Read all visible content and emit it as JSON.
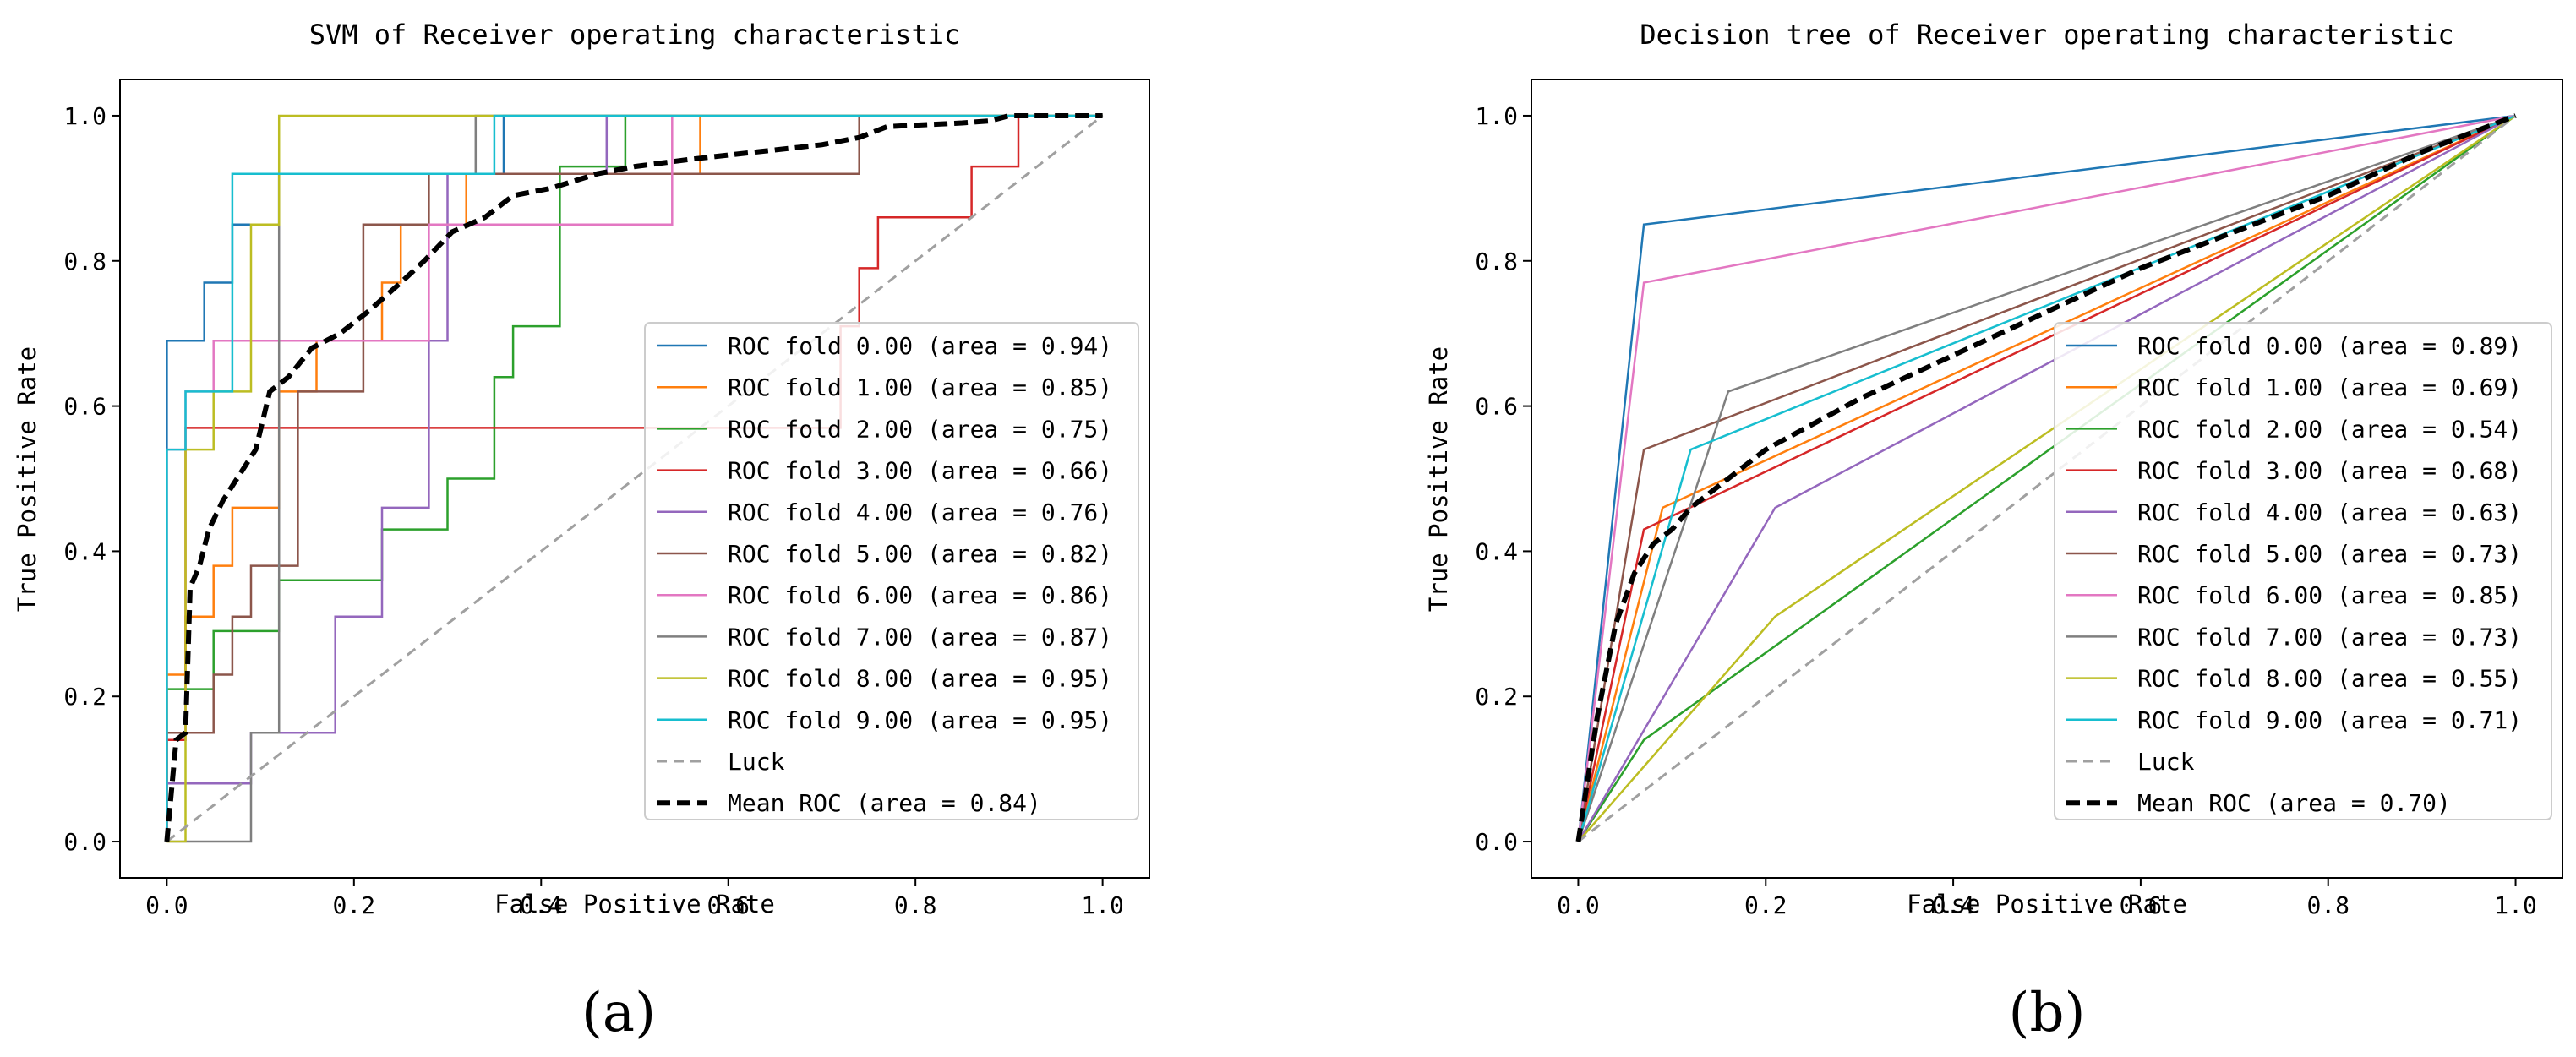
{
  "colors": {
    "fold": [
      "#1f77b4",
      "#ff7f0e",
      "#2ca02c",
      "#d62728",
      "#9467bd",
      "#8c564b",
      "#e377c2",
      "#7f7f7f",
      "#bcbd22",
      "#17becf"
    ],
    "luck": "#a0a0a0",
    "mean": "#000000",
    "axis": "#000000",
    "legend_border": "#cccccc"
  },
  "chart_data": [
    {
      "type": "line",
      "panel_label": "(a)",
      "title": "SVM of Receiver operating characteristic",
      "xlabel": "False Positive Rate",
      "ylabel": "True Positive Rate",
      "xlim": [
        -0.05,
        1.05
      ],
      "ylim": [
        -0.05,
        1.05
      ],
      "xticks": [
        "0.0",
        "0.2",
        "0.4",
        "0.6",
        "0.8",
        "1.0"
      ],
      "yticks": [
        "0.0",
        "0.2",
        "0.4",
        "0.6",
        "0.8",
        "1.0"
      ],
      "grid": false,
      "legend_position": "lower-right",
      "series": [
        {
          "name": "ROC fold 0.00 (area = 0.94)",
          "x": [
            0,
            0,
            0.02,
            0.02,
            0.04,
            0.04,
            0.07,
            0.07,
            0.09,
            0.09,
            0.12,
            0.12,
            0.36,
            0.36,
            1.0
          ],
          "y": [
            0,
            0.69,
            0.69,
            0.69,
            0.69,
            0.77,
            0.77,
            0.85,
            0.85,
            0.85,
            0.85,
            0.92,
            0.92,
            1.0,
            1.0
          ]
        },
        {
          "name": "ROC fold 1.00 (area = 0.85)",
          "x": [
            0,
            0,
            0.02,
            0.02,
            0.05,
            0.05,
            0.07,
            0.07,
            0.12,
            0.12,
            0.16,
            0.16,
            0.23,
            0.23,
            0.25,
            0.25,
            0.32,
            0.32,
            0.57,
            0.57,
            1.0
          ],
          "y": [
            0,
            0.23,
            0.23,
            0.31,
            0.31,
            0.38,
            0.38,
            0.46,
            0.46,
            0.62,
            0.62,
            0.69,
            0.69,
            0.77,
            0.77,
            0.85,
            0.85,
            0.92,
            0.92,
            1.0,
            1.0
          ]
        },
        {
          "name": "ROC fold 2.00 (area = 0.75)",
          "x": [
            0,
            0,
            0.05,
            0.05,
            0.12,
            0.12,
            0.23,
            0.23,
            0.3,
            0.3,
            0.35,
            0.35,
            0.37,
            0.37,
            0.42,
            0.42,
            0.49,
            0.49,
            1.0
          ],
          "y": [
            0,
            0.21,
            0.21,
            0.29,
            0.29,
            0.36,
            0.36,
            0.43,
            0.43,
            0.5,
            0.5,
            0.64,
            0.64,
            0.71,
            0.71,
            0.93,
            0.93,
            1.0,
            1.0
          ]
        },
        {
          "name": "ROC fold 3.00 (area = 0.66)",
          "x": [
            0,
            0,
            0.02,
            0.02,
            0.72,
            0.72,
            0.74,
            0.74,
            0.76,
            0.76,
            0.86,
            0.86,
            0.91,
            0.91,
            1.0
          ],
          "y": [
            0,
            0.14,
            0.14,
            0.57,
            0.57,
            0.71,
            0.71,
            0.79,
            0.79,
            0.86,
            0.86,
            0.93,
            0.93,
            1.0,
            1.0
          ]
        },
        {
          "name": "ROC fold 4.00 (area = 0.76)",
          "x": [
            0,
            0,
            0.02,
            0.02,
            0.09,
            0.09,
            0.18,
            0.18,
            0.23,
            0.23,
            0.28,
            0.28,
            0.3,
            0.3,
            0.47,
            0.47,
            1.0
          ],
          "y": [
            0,
            0.08,
            0.08,
            0.08,
            0.08,
            0.15,
            0.15,
            0.31,
            0.31,
            0.46,
            0.46,
            0.69,
            0.69,
            0.92,
            0.92,
            1.0,
            1.0
          ]
        },
        {
          "name": "ROC fold 5.00 (area = 0.82)",
          "x": [
            0,
            0,
            0.02,
            0.02,
            0.05,
            0.05,
            0.07,
            0.07,
            0.09,
            0.09,
            0.14,
            0.14,
            0.21,
            0.21,
            0.28,
            0.28,
            0.74,
            0.74,
            1.0
          ],
          "y": [
            0,
            0.15,
            0.15,
            0.15,
            0.15,
            0.23,
            0.23,
            0.31,
            0.31,
            0.38,
            0.38,
            0.62,
            0.62,
            0.85,
            0.85,
            0.92,
            0.92,
            1.0,
            1.0
          ]
        },
        {
          "name": "ROC fold 6.00 (area = 0.86)",
          "x": [
            0,
            0,
            0.02,
            0.02,
            0.05,
            0.05,
            0.28,
            0.28,
            0.54,
            0.54,
            1.0
          ],
          "y": [
            0,
            0.54,
            0.54,
            0.62,
            0.62,
            0.69,
            0.69,
            0.85,
            0.85,
            1.0,
            1.0
          ]
        },
        {
          "name": "ROC fold 7.00 (area = 0.87)",
          "x": [
            0,
            0.09,
            0.09,
            0.12,
            0.12,
            0.33,
            0.33,
            1.0
          ],
          "y": [
            0,
            0,
            0.15,
            0.15,
            0.92,
            0.92,
            1.0,
            1.0
          ]
        },
        {
          "name": "ROC fold 8.00 (area = 0.95)",
          "x": [
            0,
            0.02,
            0.02,
            0.05,
            0.05,
            0.09,
            0.09,
            0.12,
            0.12,
            1.0
          ],
          "y": [
            0,
            0,
            0.54,
            0.54,
            0.62,
            0.62,
            0.85,
            0.85,
            1.0,
            1.0
          ]
        },
        {
          "name": "ROC fold 9.00 (area = 0.95)",
          "x": [
            0,
            0,
            0.02,
            0.02,
            0.07,
            0.07,
            0.35,
            0.35,
            1.0
          ],
          "y": [
            0,
            0.54,
            0.54,
            0.62,
            0.62,
            0.92,
            0.92,
            1.0,
            1.0
          ]
        },
        {
          "name": "Luck",
          "style": "dashed",
          "x": [
            0,
            1
          ],
          "y": [
            0,
            1
          ]
        },
        {
          "name": "Mean ROC (area = 0.84)",
          "style": "mean",
          "x": [
            0,
            0.01,
            0.02,
            0.025,
            0.035,
            0.045,
            0.06,
            0.075,
            0.095,
            0.11,
            0.13,
            0.155,
            0.185,
            0.215,
            0.25,
            0.275,
            0.305,
            0.34,
            0.37,
            0.41,
            0.46,
            0.5,
            0.56,
            0.63,
            0.7,
            0.74,
            0.77,
            0.85,
            0.88,
            0.9,
            1.0
          ],
          "y": [
            0,
            0.14,
            0.15,
            0.35,
            0.38,
            0.43,
            0.47,
            0.5,
            0.54,
            0.62,
            0.64,
            0.68,
            0.7,
            0.73,
            0.77,
            0.8,
            0.84,
            0.86,
            0.89,
            0.9,
            0.92,
            0.93,
            0.94,
            0.95,
            0.96,
            0.97,
            0.985,
            0.99,
            0.993,
            1.0,
            1.0
          ]
        }
      ]
    },
    {
      "type": "line",
      "panel_label": "(b)",
      "title": "Decision tree of Receiver operating characteristic",
      "xlabel": "False Positive Rate",
      "ylabel": "True Positive Rate",
      "xlim": [
        -0.05,
        1.05
      ],
      "ylim": [
        -0.05,
        1.05
      ],
      "xticks": [
        "0.0",
        "0.2",
        "0.4",
        "0.6",
        "0.8",
        "1.0"
      ],
      "yticks": [
        "0.0",
        "0.2",
        "0.4",
        "0.6",
        "0.8",
        "1.0"
      ],
      "grid": false,
      "legend_position": "lower-right",
      "series": [
        {
          "name": "ROC fold 0.00 (area = 0.89)",
          "x": [
            0,
            0.07,
            1
          ],
          "y": [
            0,
            0.85,
            1
          ]
        },
        {
          "name": "ROC fold 1.00 (area = 0.69)",
          "x": [
            0,
            0.09,
            1
          ],
          "y": [
            0,
            0.46,
            1
          ]
        },
        {
          "name": "ROC fold 2.00 (area = 0.54)",
          "x": [
            0,
            0.07,
            1
          ],
          "y": [
            0,
            0.14,
            1
          ]
        },
        {
          "name": "ROC fold 3.00 (area = 0.68)",
          "x": [
            0,
            0.07,
            1
          ],
          "y": [
            0,
            0.43,
            1
          ]
        },
        {
          "name": "ROC fold 4.00 (area = 0.63)",
          "x": [
            0,
            0.21,
            1
          ],
          "y": [
            0,
            0.46,
            1
          ]
        },
        {
          "name": "ROC fold 5.00 (area = 0.73)",
          "x": [
            0,
            0.07,
            1
          ],
          "y": [
            0,
            0.54,
            1
          ]
        },
        {
          "name": "ROC fold 6.00 (area = 0.85)",
          "x": [
            0,
            0.07,
            1
          ],
          "y": [
            0,
            0.77,
            1
          ]
        },
        {
          "name": "ROC fold 7.00 (area = 0.73)",
          "x": [
            0,
            0.16,
            1
          ],
          "y": [
            0,
            0.62,
            1
          ]
        },
        {
          "name": "ROC fold 8.00 (area = 0.55)",
          "x": [
            0,
            0.21,
            1
          ],
          "y": [
            0,
            0.31,
            1
          ]
        },
        {
          "name": "ROC fold 9.00 (area = 0.71)",
          "x": [
            0,
            0.12,
            1
          ],
          "y": [
            0,
            0.54,
            1
          ]
        },
        {
          "name": "Luck",
          "style": "dashed",
          "x": [
            0,
            1
          ],
          "y": [
            0,
            1
          ]
        },
        {
          "name": "Mean ROC (area = 0.70)",
          "style": "mean",
          "x": [
            0,
            0.02,
            0.04,
            0.06,
            0.08,
            0.1,
            0.12,
            0.14,
            0.17,
            0.2,
            0.3,
            0.4,
            0.5,
            0.6,
            0.7,
            0.8,
            0.9,
            1.0
          ],
          "y": [
            0,
            0.17,
            0.3,
            0.37,
            0.41,
            0.43,
            0.46,
            0.48,
            0.51,
            0.54,
            0.61,
            0.67,
            0.73,
            0.79,
            0.84,
            0.89,
            0.95,
            1.0
          ]
        }
      ]
    }
  ]
}
